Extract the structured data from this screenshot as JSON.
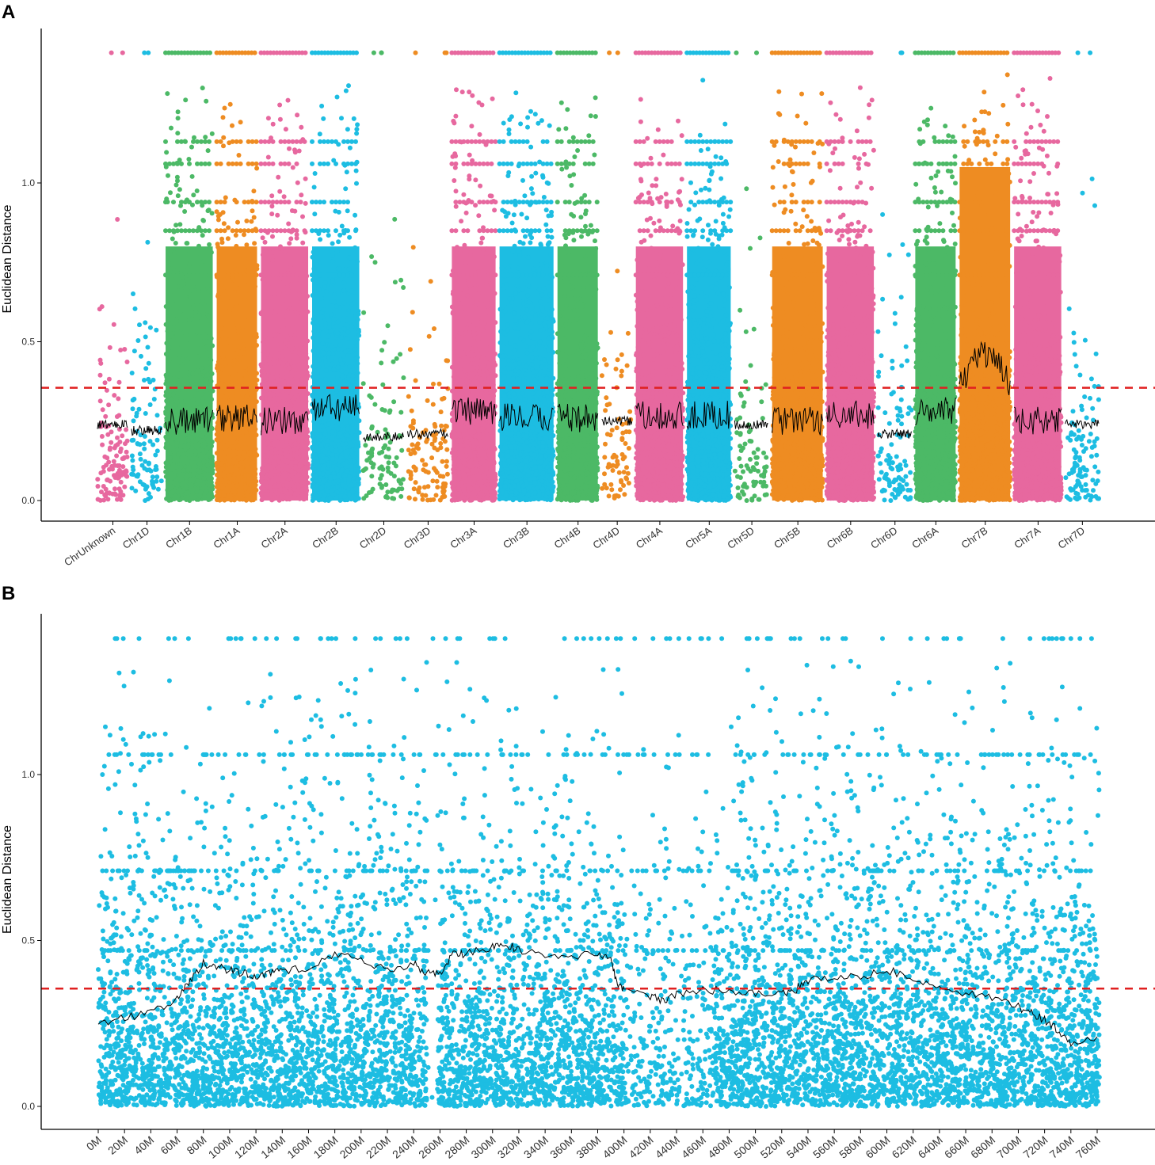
{
  "panels": {
    "a_label": "A",
    "b_label": "B"
  },
  "colors": {
    "pink": "#e7689f",
    "blue": "#1dbde2",
    "green": "#4cb966",
    "orange": "#ee8c22",
    "threshold": "#e02020",
    "window": "#000000",
    "axis": "#000000"
  },
  "chart_data": [
    {
      "type": "scatter",
      "id": "A",
      "title": "",
      "xlabel": "",
      "ylabel": "Euclidean Distance",
      "ylim": [
        -0.05,
        1.45
      ],
      "yticks": [
        0.0,
        0.5,
        1.0
      ],
      "ytick_labels": [
        "0.0",
        "0.5",
        "1.0"
      ],
      "threshold": 0.355,
      "grid": false,
      "legend": "none",
      "categories": [
        "ChrUnknown",
        "Chr1D",
        "Chr1B",
        "Chr1A",
        "Chr2A",
        "Chr2B",
        "Chr2D",
        "Chr3D",
        "Chr3A",
        "Chr3B",
        "Chr4B",
        "Chr4D",
        "Chr4A",
        "Chr5A",
        "Chr5D",
        "Chr5B",
        "Chr6B",
        "Chr6D",
        "Chr6A",
        "Chr7B",
        "Chr7A",
        "Chr7D"
      ],
      "series": [
        {
          "name": "ChrUnknown",
          "color": "pink",
          "span": [
            0,
            1.0
          ],
          "density": 0.7,
          "window_mean": 0.24,
          "peak": 0.95
        },
        {
          "name": "Chr1D",
          "color": "blue",
          "span": [
            1.0,
            2.0
          ],
          "density": 0.55,
          "window_mean": 0.22,
          "peak": 0.85
        },
        {
          "name": "Chr1B",
          "color": "green",
          "span": [
            2.0,
            3.5
          ],
          "density": 1.0,
          "window_mean": 0.25,
          "peak": 1.3
        },
        {
          "name": "Chr1A",
          "color": "orange",
          "span": [
            3.5,
            4.8
          ],
          "density": 1.0,
          "window_mean": 0.26,
          "peak": 1.3
        },
        {
          "name": "Chr2A",
          "color": "pink",
          "span": [
            4.8,
            6.3
          ],
          "density": 1.0,
          "window_mean": 0.25,
          "peak": 1.33
        },
        {
          "name": "Chr2B",
          "color": "blue",
          "span": [
            6.3,
            7.8
          ],
          "density": 1.0,
          "window_mean": 0.29,
          "peak": 1.32
        },
        {
          "name": "Chr2D",
          "color": "green",
          "span": [
            7.8,
            9.1
          ],
          "density": 0.45,
          "window_mean": 0.2,
          "peak": 0.95
        },
        {
          "name": "Chr3D",
          "color": "orange",
          "span": [
            9.1,
            10.4
          ],
          "density": 0.5,
          "window_mean": 0.21,
          "peak": 1.15
        },
        {
          "name": "Chr3A",
          "color": "pink",
          "span": [
            10.4,
            11.8
          ],
          "density": 1.0,
          "window_mean": 0.28,
          "peak": 1.32
        },
        {
          "name": "Chr3B",
          "color": "blue",
          "span": [
            11.8,
            13.5
          ],
          "density": 1.0,
          "window_mean": 0.26,
          "peak": 1.34
        },
        {
          "name": "Chr4B",
          "color": "green",
          "span": [
            13.5,
            14.8
          ],
          "density": 1.0,
          "window_mean": 0.26,
          "peak": 1.28
        },
        {
          "name": "Chr4D",
          "color": "orange",
          "span": [
            14.8,
            15.8
          ],
          "density": 0.45,
          "window_mean": 0.25,
          "peak": 1.13
        },
        {
          "name": "Chr4A",
          "color": "pink",
          "span": [
            15.8,
            17.3
          ],
          "density": 1.0,
          "window_mean": 0.27,
          "peak": 1.28
        },
        {
          "name": "Chr5A",
          "color": "blue",
          "span": [
            17.3,
            18.7
          ],
          "density": 1.0,
          "window_mean": 0.27,
          "peak": 1.33
        },
        {
          "name": "Chr5D",
          "color": "green",
          "span": [
            18.7,
            19.8
          ],
          "density": 0.45,
          "window_mean": 0.24,
          "peak": 1.2
        },
        {
          "name": "Chr5B",
          "color": "orange",
          "span": [
            19.8,
            21.4
          ],
          "density": 1.0,
          "window_mean": 0.25,
          "peak": 1.3
        },
        {
          "name": "Chr6B",
          "color": "pink",
          "span": [
            21.4,
            22.9
          ],
          "density": 1.0,
          "window_mean": 0.27,
          "peak": 1.33
        },
        {
          "name": "Chr6D",
          "color": "blue",
          "span": [
            22.9,
            24.0
          ],
          "density": 0.55,
          "window_mean": 0.21,
          "peak": 0.95
        },
        {
          "name": "Chr6A",
          "color": "green",
          "span": [
            24.0,
            25.3
          ],
          "density": 1.0,
          "window_mean": 0.28,
          "peak": 1.32
        },
        {
          "name": "Chr7B",
          "color": "orange",
          "span": [
            25.3,
            26.9
          ],
          "density": 1.35,
          "window_mean": 0.36,
          "peak": 1.38
        },
        {
          "name": "Chr7A",
          "color": "pink",
          "span": [
            26.9,
            28.4
          ],
          "density": 1.0,
          "window_mean": 0.25,
          "peak": 1.33
        },
        {
          "name": "Chr7D",
          "color": "blue",
          "span": [
            28.4,
            29.5
          ],
          "density": 0.6,
          "window_mean": 0.24,
          "peak": 1.05
        }
      ],
      "xlim": [
        -0.2,
        29.6
      ]
    },
    {
      "type": "scatter",
      "id": "B",
      "title": "",
      "xlabel": "",
      "ylabel": "Euclidean Distance",
      "ylim": [
        -0.07,
        1.45
      ],
      "yticks": [
        0.0,
        0.5,
        1.0
      ],
      "ytick_labels": [
        "0.0",
        "0.5",
        "1.0"
      ],
      "xlim": [
        -8,
        768
      ],
      "xticks": [
        0,
        20,
        40,
        60,
        80,
        100,
        120,
        140,
        160,
        180,
        200,
        220,
        240,
        260,
        280,
        300,
        320,
        340,
        360,
        380,
        400,
        420,
        440,
        460,
        480,
        500,
        520,
        540,
        560,
        580,
        600,
        620,
        640,
        660,
        680,
        700,
        720,
        740,
        760
      ],
      "xtick_labels": [
        "0M",
        "20M",
        "40M",
        "60M",
        "80M",
        "100M",
        "120M",
        "140M",
        "160M",
        "180M",
        "200M",
        "220M",
        "240M",
        "260M",
        "280M",
        "300M",
        "320M",
        "340M",
        "360M",
        "380M",
        "400M",
        "420M",
        "440M",
        "460M",
        "480M",
        "500M",
        "520M",
        "540M",
        "560M",
        "580M",
        "600M",
        "620M",
        "640M",
        "660M",
        "680M",
        "700M",
        "720M",
        "740M",
        "760M"
      ],
      "threshold": 0.355,
      "grid": false,
      "legend": "none",
      "point_color": "blue",
      "window_line": {
        "x": [
          0,
          20,
          40,
          60,
          70,
          80,
          90,
          100,
          110,
          120,
          130,
          140,
          160,
          180,
          200,
          220,
          240,
          250,
          260,
          270,
          280,
          300,
          310,
          320,
          340,
          360,
          380,
          390,
          395,
          400,
          420,
          430,
          440,
          460,
          480,
          500,
          520,
          530,
          540,
          560,
          580,
          600,
          620,
          640,
          660,
          680,
          700,
          710,
          720,
          730,
          740,
          760
        ],
        "y": [
          0.25,
          0.27,
          0.28,
          0.32,
          0.38,
          0.43,
          0.42,
          0.41,
          0.4,
          0.39,
          0.4,
          0.41,
          0.42,
          0.46,
          0.44,
          0.41,
          0.43,
          0.4,
          0.4,
          0.46,
          0.46,
          0.48,
          0.49,
          0.47,
          0.46,
          0.45,
          0.46,
          0.44,
          0.37,
          0.35,
          0.33,
          0.32,
          0.34,
          0.35,
          0.35,
          0.34,
          0.34,
          0.35,
          0.38,
          0.39,
          0.39,
          0.41,
          0.39,
          0.36,
          0.34,
          0.33,
          0.3,
          0.28,
          0.26,
          0.23,
          0.19,
          0.21
        ]
      }
    }
  ]
}
